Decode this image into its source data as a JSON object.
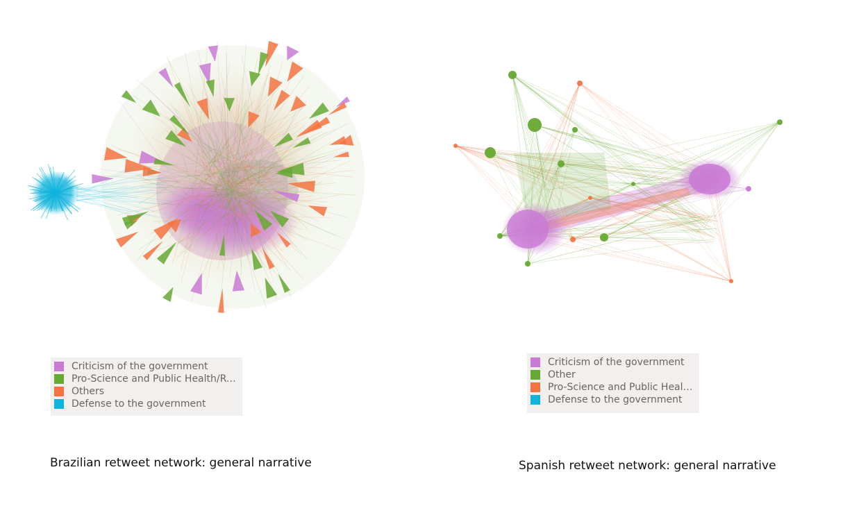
{
  "networks": [
    {
      "id": "br",
      "caption": "Brazilian retweet network: general narrative",
      "legend": [
        {
          "label": "Criticism of the government",
          "color": "#c97ad3"
        },
        {
          "label": "Pro-Science and Public Health/Reg...",
          "color": "#66a832"
        },
        {
          "label": "Others",
          "color": "#f37442"
        },
        {
          "label": "Defense to the government",
          "color": "#10b3dc"
        }
      ]
    },
    {
      "id": "es",
      "caption": "Spanish retweet network: general narrative",
      "legend": [
        {
          "label": "Criticism of the government",
          "color": "#c97ad3"
        },
        {
          "label": "Other",
          "color": "#66a832"
        },
        {
          "label": "Pro-Science and Public Health...",
          "color": "#f37442"
        },
        {
          "label": "Defense to the government",
          "color": "#10b3dc"
        }
      ]
    }
  ]
}
